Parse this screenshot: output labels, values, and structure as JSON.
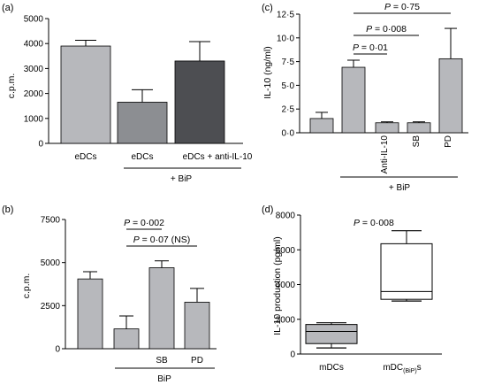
{
  "colors": {
    "bar_light": "#b7b8bc",
    "bar_mid": "#8c8e92",
    "bar_dark": "#4d4e52",
    "axis": "#000000"
  },
  "chart_data": [
    {
      "id": "a",
      "panel_label": "(a)",
      "type": "bar",
      "ylabel": "c.p.m.",
      "ylim": [
        0,
        5000
      ],
      "yticks": [
        0,
        1000,
        2000,
        3000,
        4000,
        5000
      ],
      "yticklabels": [
        "0",
        "1000",
        "2000",
        "3000",
        "4000",
        "5000"
      ],
      "categories": [
        "eDCs",
        "eDCs",
        "eDCs + anti-IL-10"
      ],
      "values": [
        3900,
        1650,
        3300
      ],
      "errors": [
        230,
        500,
        780
      ],
      "bar_colors": [
        "bar_light",
        "bar_mid",
        "bar_dark"
      ],
      "group_label": "+ BiP",
      "group_span": [
        1,
        2
      ]
    },
    {
      "id": "b",
      "panel_label": "(b)",
      "type": "bar",
      "ylabel": "c.p.m.",
      "ylim": [
        0,
        7500
      ],
      "yticks": [
        0,
        2500,
        5000,
        7500
      ],
      "yticklabels": [
        "0",
        "2500",
        "5000",
        "7500"
      ],
      "categories": [
        "",
        "",
        "SB",
        "PD"
      ],
      "values": [
        4050,
        1150,
        4700,
        2700
      ],
      "errors": [
        420,
        750,
        400,
        800
      ],
      "bar_colors": [
        "bar_light",
        "bar_light",
        "bar_light",
        "bar_light"
      ],
      "group_label": "BiP",
      "group_span": [
        1,
        3
      ],
      "comparisons": [
        {
          "label_p": "P",
          "label_rest": " = 0·002",
          "from": 1,
          "to": 2
        },
        {
          "label_p": "P",
          "label_rest": " = 0·07 (NS)",
          "from": 1,
          "to": 3
        }
      ]
    },
    {
      "id": "c",
      "panel_label": "(c)",
      "type": "bar",
      "ylabel": "IL-10 (ng/ml)",
      "ylim": [
        0,
        12.5
      ],
      "yticks": [
        0,
        2.5,
        5,
        7.5,
        10,
        12.5
      ],
      "yticklabels": [
        "0·0",
        "2·5",
        "5·0",
        "7·5",
        "10·0",
        "12·5"
      ],
      "categories": [
        "",
        "",
        "Anti-IL-10",
        "SB",
        "PD"
      ],
      "values": [
        1.5,
        6.9,
        1.05,
        1.05,
        7.8
      ],
      "errors": [
        0.65,
        0.75,
        0.1,
        0.1,
        3.2
      ],
      "bar_colors": [
        "bar_light",
        "bar_light",
        "bar_light",
        "bar_light",
        "bar_light"
      ],
      "group_label": "+ BiP",
      "group_span": [
        1,
        4
      ],
      "comparisons": [
        {
          "label_p": "P",
          "label_rest": " = 0·01",
          "from": 1,
          "to": 2
        },
        {
          "label_p": "P",
          "label_rest": " = 0·008",
          "from": 1,
          "to": 3
        },
        {
          "label_p": "P",
          "label_rest": " = 0·75",
          "from": 1,
          "to": 4
        }
      ]
    },
    {
      "id": "d",
      "panel_label": "(d)",
      "type": "box",
      "ylabel": "IL-10 production (pg/ml)",
      "ylim": [
        0,
        8000
      ],
      "yticks": [
        0,
        2000,
        4000,
        6000,
        8000
      ],
      "yticklabels": [
        "0",
        "2000",
        "4000",
        "6000",
        "8000"
      ],
      "categories": [
        "mDCs",
        "mDC"
      ],
      "category_subscript": [
        "",
        "(BiP)"
      ],
      "category_suffix": [
        "",
        "s"
      ],
      "annotation_p": "P",
      "annotation_rest": " = 0·008",
      "boxes": [
        {
          "min": 350,
          "q1": 600,
          "median": 1300,
          "q3": 1700,
          "max": 1800
        },
        {
          "min": 3050,
          "q1": 3150,
          "median": 3600,
          "q3": 6350,
          "max": 7100
        }
      ]
    }
  ]
}
